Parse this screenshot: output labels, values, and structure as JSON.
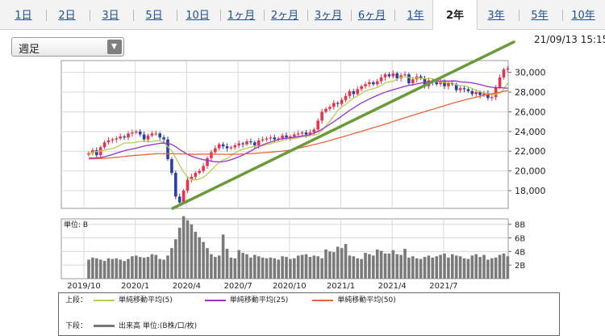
{
  "tabs": [
    {
      "label": "1日",
      "active": false
    },
    {
      "label": "2日",
      "active": false
    },
    {
      "label": "3日",
      "active": false
    },
    {
      "label": "5日",
      "active": false
    },
    {
      "label": "10日",
      "active": false
    },
    {
      "label": "1ヶ月",
      "active": false
    },
    {
      "label": "2ヶ月",
      "active": false
    },
    {
      "label": "3ヶ月",
      "active": false
    },
    {
      "label": "6ヶ月",
      "active": false
    },
    {
      "label": "1年",
      "active": false
    },
    {
      "label": "2年",
      "active": true
    },
    {
      "label": "3年",
      "active": false
    },
    {
      "label": "5年",
      "active": false
    },
    {
      "label": "10年",
      "active": false
    }
  ],
  "period_select": {
    "value": "週足"
  },
  "timestamp": "21/09/13 15:15",
  "legend": {
    "upper_label": "上段：",
    "lower_label": "下段：",
    "ma5": "単純移動平均(5)",
    "ma25": "単純移動平均(25)",
    "ma50": "単純移動平均(50)",
    "volume": "出来高 単位:(B株/口/枚)"
  },
  "colors": {
    "up": "#e8324a",
    "down": "#2b3fa8",
    "ma5": "#b8cc5a",
    "ma25": "#9b30c8",
    "ma50": "#e8643c",
    "trendline": "#6a9a3a",
    "volume": "#7a7a7a"
  },
  "chart_data": {
    "type": "candlestick",
    "x_tick_labels": [
      "2019/10",
      "2020/1",
      "2020/4",
      "2020/7",
      "2020/10",
      "2021/1",
      "2021/4",
      "2021/7"
    ],
    "price_axis": {
      "ticks": [
        18000,
        20000,
        22000,
        24000,
        26000,
        28000,
        30000
      ],
      "labels": [
        "18,000",
        "20,000",
        "22,000",
        "24,000",
        "26,000",
        "28,000",
        "30,000"
      ],
      "ylim": [
        16200,
        31200
      ]
    },
    "volume_axis": {
      "unit_label": "単位: B",
      "ticks": [
        2,
        4,
        6,
        8
      ],
      "labels": [
        "2B",
        "4B",
        "6B",
        "8B"
      ],
      "ylim": [
        0,
        8.8
      ]
    },
    "close": [
      21800,
      22100,
      21600,
      22400,
      22900,
      23100,
      23200,
      23300,
      23500,
      23400,
      23800,
      23900,
      24000,
      23700,
      23200,
      23600,
      23800,
      23800,
      23400,
      23200,
      21200,
      19800,
      17400,
      16800,
      18000,
      19100,
      19400,
      19800,
      20000,
      20500,
      21300,
      21900,
      22300,
      22700,
      22500,
      22300,
      22400,
      22600,
      22800,
      22700,
      23000,
      22900,
      22600,
      23100,
      23200,
      23300,
      23400,
      23200,
      23300,
      23600,
      23400,
      23500,
      23700,
      23800,
      23900,
      23700,
      23900,
      24200,
      25100,
      26000,
      26300,
      26500,
      26900,
      26800,
      27200,
      27600,
      28100,
      27800,
      28300,
      28600,
      28800,
      29000,
      28800,
      29100,
      29500,
      29800,
      29600,
      29900,
      29400,
      29700,
      29800,
      28900,
      29300,
      29600,
      29400,
      28600,
      29200,
      29000,
      28800,
      29100,
      28600,
      28900,
      28800,
      28200,
      28400,
      28300,
      28100,
      27800,
      28000,
      27700,
      27900,
      27400,
      27500,
      28500,
      29500,
      30300,
      30400
    ],
    "series": [
      {
        "name": "単純移動平均(5)",
        "values": [
          21755,
          21871,
          21964,
          22015,
          22114,
          22217,
          22276,
          22424,
          22641,
          22824,
          22862,
          22844,
          22912,
          22986,
          23039,
          23002,
          22969,
          23059,
          23050,
          22834,
          22463,
          22029,
          21353,
          20585,
          19881,
          19380,
          19125,
          19076,
          19176,
          19343,
          19695,
          20060,
          20499,
          20878,
          21118,
          21273,
          21541,
          21838,
          22053,
          22213,
          22287,
          22430,
          22525,
          22513,
          22576,
          22665,
          22754,
          22888,
          22953,
          23088,
          23244,
          23273,
          23267,
          23355,
          23482,
          23506,
          23575,
          23618,
          23756,
          24085,
          24581,
          25050,
          25569,
          26156,
          26510,
          26731,
          27088,
          27397,
          27606,
          27842,
          28116,
          28245,
          28366,
          28458,
          28649,
          28950,
          29022,
          29098,
          29329,
          29512,
          29583,
          29467,
          29437,
          29460,
          29408,
          29355,
          29380,
          29361,
          29211,
          29016,
          28985,
          28962,
          28928,
          28730,
          28659,
          28636,
          28517,
          28379,
          28152,
          28049,
          27916,
          27834,
          27740,
          27760,
          27886,
          28308,
          28918
        ]
      },
      {
        "name": "単純移動平均(25)",
        "values": [
          21309,
          21313,
          21327,
          21368,
          21443,
          21547,
          21665,
          21801,
          21929,
          22053,
          22152,
          22226,
          22308,
          22415,
          22526,
          22600,
          22661,
          22735,
          22797,
          22827,
          22796,
          22690,
          22461,
          22174,
          21925,
          21683,
          21495,
          21351,
          21242,
          21144,
          21075,
          20991,
          20937,
          20913,
          20941,
          21026,
          21141,
          21283,
          21442,
          21610,
          21824,
          22020,
          22251,
          22462,
          22638,
          22803,
          22920,
          23059,
          23181,
          23276,
          23318,
          23359,
          23417,
          23480,
          23550,
          23601,
          23693,
          23828,
          24005,
          24224,
          24479,
          24730,
          25002,
          25282,
          25565,
          25855,
          26140,
          26394,
          26656,
          26898,
          27100,
          27301,
          27489,
          27663,
          27834,
          27989,
          28125,
          28237,
          28353,
          28474,
          28592,
          28678,
          28749,
          28830,
          28915,
          28987,
          29052,
          29088,
          29106,
          29122,
          29139,
          29119,
          29137,
          29126,
          29040,
          29011,
          28985,
          28940,
          28853,
          28770,
          28657,
          28560,
          28496,
          28463,
          28447,
          28423,
          28392
        ]
      },
      {
        "name": "単純移動平均(50)",
        "values": [
          21216,
          21231,
          21247,
          21265,
          21287,
          21315,
          21346,
          21380,
          21424,
          21474,
          21519,
          21555,
          21585,
          21612,
          21644,
          21678,
          21714,
          21738,
          21756,
          21761,
          21756,
          21751,
          21745,
          21738,
          21722,
          21713,
          21698,
          21688,
          21695,
          21704,
          21706,
          21701,
          21695,
          21689,
          21689,
          21683,
          21686,
          21692,
          21701,
          21714,
          21734,
          21756,
          21785,
          21817,
          21848,
          21879,
          21904,
          21942,
          21978,
          22010,
          22055,
          22117,
          22199,
          22294,
          22390,
          22489,
          22579,
          22672,
          22765,
          22866,
          22974,
          23089,
          23212,
          23322,
          23434,
          23551,
          23664,
          23789,
          23908,
          24020,
          24140,
          24261,
          24384,
          24501,
          24625,
          24756,
          24872,
          25016,
          25142,
          25265,
          25399,
          25523,
          25648,
          25772,
          25894,
          26019,
          26143,
          26252,
          26370,
          26497,
          26622,
          26740,
          26862,
          26976,
          27081,
          27190,
          27294,
          27391,
          27480,
          27574,
          27670,
          27761,
          27835,
          27911,
          27995,
          28078,
          28158
        ]
      }
    ],
    "volume": [
      2.8,
      3.1,
      3.0,
      2.8,
      2.6,
      3.0,
      2.9,
      3.0,
      2.8,
      2.6,
      2.9,
      3.3,
      3.4,
      3.2,
      3.1,
      3.2,
      3.6,
      3.5,
      2.9,
      2.8,
      3.4,
      4.5,
      5.8,
      7.5,
      9.2,
      8.6,
      8.0,
      6.9,
      6.1,
      5.4,
      4.5,
      3.6,
      3.2,
      3.4,
      6.5,
      4.4,
      3.1,
      3.0,
      4.2,
      3.8,
      3.6,
      3.1,
      3.5,
      3.3,
      3.1,
      3.0,
      3.1,
      3.0,
      2.8,
      3.3,
      3.2,
      2.9,
      3.0,
      3.4,
      3.5,
      3.6,
      3.2,
      3.4,
      3.3,
      3.0,
      4.3,
      4.0,
      3.9,
      4.7,
      4.5,
      5.1,
      3.4,
      3.3,
      3.0,
      2.9,
      3.8,
      3.6,
      3.4,
      4.3,
      4.1,
      3.7,
      3.7,
      4.2,
      3.6,
      3.5,
      4.4,
      3.1,
      3.3,
      3.0,
      2.9,
      3.2,
      3.4,
      3.1,
      3.3,
      3.5,
      3.7,
      3.1,
      3.6,
      3.4,
      3.3,
      3.0,
      2.9,
      3.4,
      3.6,
      3.2,
      3.5,
      2.8,
      3.0,
      3.1,
      3.5,
      3.7,
      3.3
    ]
  }
}
